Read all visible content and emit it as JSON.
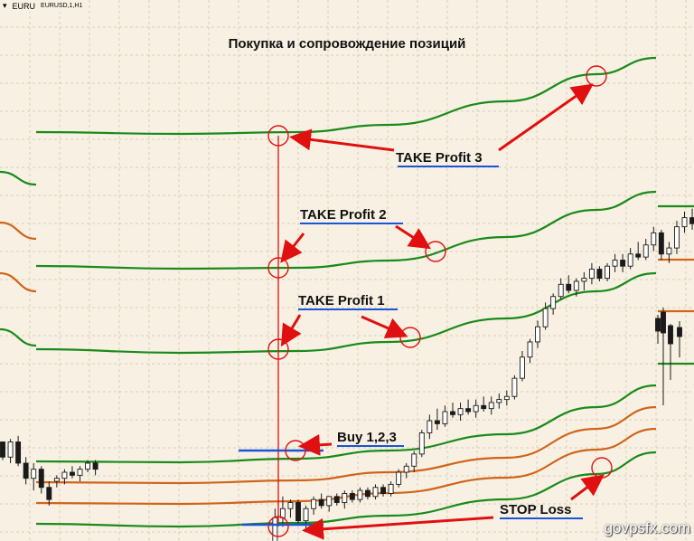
{
  "window": {
    "symbol_short": "EURU",
    "symbol_full": "EURUSD,1,H1",
    "dropdown_glyph": "▾"
  },
  "chart_data": {
    "type": "candlestick",
    "title": "Покупка и сопровождение позиций",
    "xlabel": "",
    "ylabel": "",
    "grid": true,
    "candles": [
      [
        1.0,
        1.0,
        0.4,
        0.5
      ],
      [
        0.5,
        1.1,
        0.3,
        1.0
      ],
      [
        1.0,
        1.2,
        0.2,
        0.3
      ],
      [
        0.3,
        0.5,
        -0.4,
        -0.2
      ],
      [
        -0.2,
        0.3,
        -0.6,
        0.1
      ],
      [
        0.1,
        0.2,
        -0.7,
        -0.5
      ],
      [
        -0.5,
        -0.3,
        -1.1,
        -0.9
      ],
      [
        -0.3,
        -0.1,
        -0.5,
        -0.2
      ],
      [
        -0.2,
        0.1,
        -0.4,
        0.0
      ],
      [
        0.0,
        0.2,
        -0.2,
        -0.1
      ],
      [
        -0.1,
        0.2,
        -0.3,
        0.1
      ],
      [
        0.1,
        0.4,
        0.0,
        0.3
      ],
      [
        0.3,
        0.4,
        -0.1,
        0.1
      ],
      [
        -2.9,
        -1.2,
        -3.0,
        -1.5
      ],
      [
        -1.5,
        -0.8,
        -1.8,
        -1.2
      ],
      [
        -1.2,
        -0.9,
        -1.5,
        -1.0
      ],
      [
        -1.0,
        -0.9,
        -1.7,
        -1.6
      ],
      [
        -1.6,
        -1.1,
        -1.9,
        -1.2
      ],
      [
        -1.2,
        -0.8,
        -1.4,
        -0.9
      ],
      [
        -0.9,
        -0.7,
        -1.2,
        -1.1
      ],
      [
        -1.1,
        -0.8,
        -1.3,
        -0.8
      ],
      [
        -0.8,
        -0.7,
        -1.1,
        -1.0
      ],
      [
        -1.0,
        -0.6,
        -1.2,
        -0.7
      ],
      [
        -0.7,
        -0.6,
        -1.0,
        -0.9
      ],
      [
        -0.9,
        -0.5,
        -1.0,
        -0.6
      ],
      [
        -0.6,
        -0.5,
        -0.9,
        -0.8
      ],
      [
        -0.8,
        -0.4,
        -0.9,
        -0.5
      ],
      [
        -0.5,
        -0.4,
        -0.8,
        -0.7
      ],
      [
        -0.7,
        -0.3,
        -0.8,
        -0.4
      ],
      [
        -0.4,
        0.1,
        -0.5,
        0.0
      ],
      [
        0.0,
        0.3,
        -0.2,
        0.2
      ],
      [
        0.2,
        0.7,
        0.0,
        0.6
      ],
      [
        0.6,
        1.4,
        0.5,
        1.3
      ],
      [
        1.3,
        1.9,
        1.1,
        1.7
      ],
      [
        1.7,
        2.1,
        1.4,
        1.6
      ],
      [
        1.6,
        2.2,
        1.5,
        2.0
      ],
      [
        2.0,
        2.3,
        1.8,
        1.9
      ],
      [
        1.9,
        2.3,
        1.7,
        2.1
      ],
      [
        2.1,
        2.4,
        1.9,
        2.0
      ],
      [
        2.0,
        2.4,
        1.8,
        2.2
      ],
      [
        2.2,
        2.5,
        2.0,
        2.1
      ],
      [
        2.1,
        2.5,
        1.9,
        2.3
      ],
      [
        2.3,
        2.6,
        2.1,
        2.4
      ],
      [
        2.4,
        2.7,
        2.2,
        2.5
      ],
      [
        2.5,
        3.2,
        2.4,
        3.1
      ],
      [
        3.1,
        4.0,
        3.0,
        3.8
      ],
      [
        3.8,
        4.4,
        3.6,
        4.3
      ],
      [
        4.3,
        5.0,
        4.1,
        4.8
      ],
      [
        4.8,
        5.6,
        4.7,
        5.4
      ],
      [
        5.4,
        5.9,
        5.2,
        5.8
      ],
      [
        5.8,
        6.4,
        5.7,
        6.2
      ],
      [
        6.2,
        6.5,
        5.9,
        6.0
      ],
      [
        6.0,
        6.4,
        5.8,
        6.3
      ],
      [
        6.3,
        6.6,
        6.0,
        6.4
      ],
      [
        6.4,
        6.9,
        6.2,
        6.7
      ],
      [
        6.7,
        6.8,
        6.3,
        6.4
      ],
      [
        6.4,
        6.9,
        6.3,
        6.8
      ],
      [
        6.8,
        7.2,
        6.6,
        7.0
      ],
      [
        7.0,
        7.2,
        6.6,
        6.8
      ],
      [
        6.8,
        7.4,
        6.7,
        7.2
      ],
      [
        7.2,
        7.6,
        7.0,
        7.1
      ],
      [
        7.1,
        7.7,
        7.0,
        7.5
      ],
      [
        7.5,
        8.1,
        7.3,
        7.9
      ],
      [
        7.9,
        8.0,
        7.0,
        7.2
      ],
      [
        7.2,
        7.6,
        6.9,
        7.4
      ],
      [
        7.4,
        8.3,
        7.2,
        8.1
      ],
      [
        8.1,
        8.6,
        7.9,
        8.4
      ],
      [
        8.4,
        8.7,
        8.0,
        8.2
      ],
      [
        8.2,
        9.0,
        8.1,
        8.8
      ],
      [
        8.8,
        9.4,
        8.6,
        9.3
      ],
      [
        9.3,
        9.8,
        9.0,
        9.6
      ],
      [
        9.6,
        10.3,
        9.4,
        10.1
      ],
      [
        10.1,
        10.4,
        9.5,
        9.8
      ],
      [
        9.8,
        10.5,
        9.6,
        10.3
      ],
      [
        10.3,
        10.8,
        10.1,
        10.6
      ],
      [
        10.6,
        11.0,
        10.4,
        10.8
      ],
      [
        10.8,
        11.2,
        10.5,
        10.7
      ],
      [
        10.7,
        11.0,
        10.4,
        10.9
      ],
      [
        10.9,
        11.1,
        10.5,
        10.6
      ],
      [
        10.6,
        10.9,
        10.3,
        10.8
      ],
      [
        10.8,
        10.9,
        10.0,
        10.1
      ],
      [
        10.1,
        10.2,
        9.2,
        9.4
      ],
      [
        9.4,
        9.6,
        8.9,
        9.0
      ],
      [
        9.0,
        9.2,
        8.6,
        8.8
      ]
    ],
    "annotations": {
      "take_profit_3": "TAKE Profit 3",
      "take_profit_2": "TAKE Profit 2",
      "take_profit_1": "TAKE Profit 1",
      "buy": "Buy 1,2,3",
      "stop_loss": "STOP Loss"
    },
    "colors": {
      "background": "#f8f1e3",
      "grid": "#d8cdb6",
      "band_green": "#1a8a1a",
      "band_orange": "#d0641a",
      "candle": "#1a1a1a",
      "annotation": "#e01010",
      "label_underline": "#1a55d8"
    }
  },
  "watermark": "govpsfx.com"
}
